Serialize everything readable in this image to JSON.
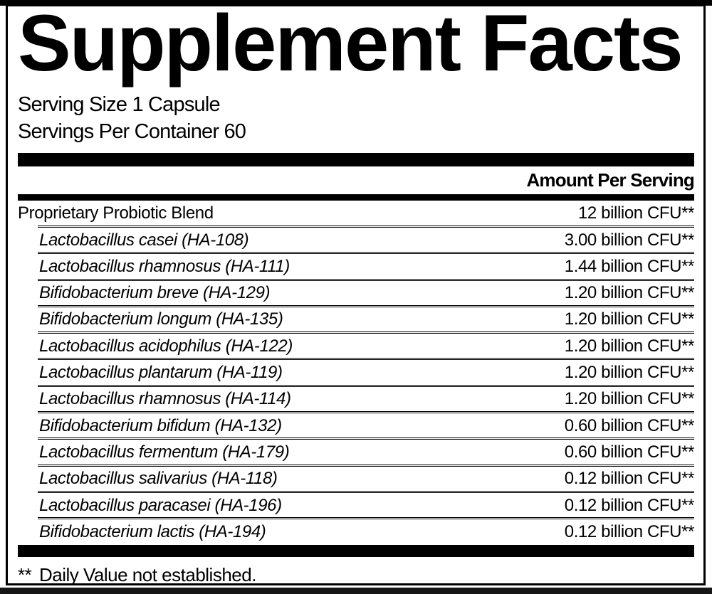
{
  "panel": {
    "title": "Supplement Facts",
    "serving_size": "Serving Size 1 Capsule",
    "servings_per_container": "Servings Per Container 60",
    "amount_header": "Amount Per Serving",
    "footnote_marker": "**",
    "footnote_text": "Daily Value not established.",
    "colors": {
      "ink": "#000000",
      "paper": "#ffffff",
      "edge_strip_top": "#000000",
      "edge_strip_bottom": "#161616"
    },
    "rows": [
      {
        "name": "Proprietary Probiotic Blend",
        "amount": "12 billion CFU**"
      },
      {
        "name": "Lactobacillus casei (HA-108)",
        "amount": "3.00 billion CFU**"
      },
      {
        "name": "Lactobacillus rhamnosus (HA-111)",
        "amount": "1.44 billion CFU**"
      },
      {
        "name": "Bifidobacterium breve (HA-129)",
        "amount": "1.20 billion CFU**"
      },
      {
        "name": "Bifidobacterium longum (HA-135)",
        "amount": "1.20 billion CFU**"
      },
      {
        "name": "Lactobacillus acidophilus (HA-122)",
        "amount": "1.20 billion CFU**"
      },
      {
        "name": "Lactobacillus plantarum (HA-119)",
        "amount": "1.20 billion CFU**"
      },
      {
        "name": "Lactobacillus rhamnosus (HA-114)",
        "amount": "1.20 billion CFU**"
      },
      {
        "name": "Bifidobacterium bifidum (HA-132)",
        "amount": "0.60 billion CFU**"
      },
      {
        "name": "Lactobacillus fermentum (HA-179)",
        "amount": "0.60 billion CFU**"
      },
      {
        "name": "Lactobacillus salivarius (HA-118)",
        "amount": "0.12 billion CFU**"
      },
      {
        "name": "Lactobacillus paracasei (HA-196)",
        "amount": "0.12 billion CFU**"
      },
      {
        "name": "Bifidobacterium lactis (HA-194)",
        "amount": "0.12 billion CFU**"
      }
    ]
  }
}
